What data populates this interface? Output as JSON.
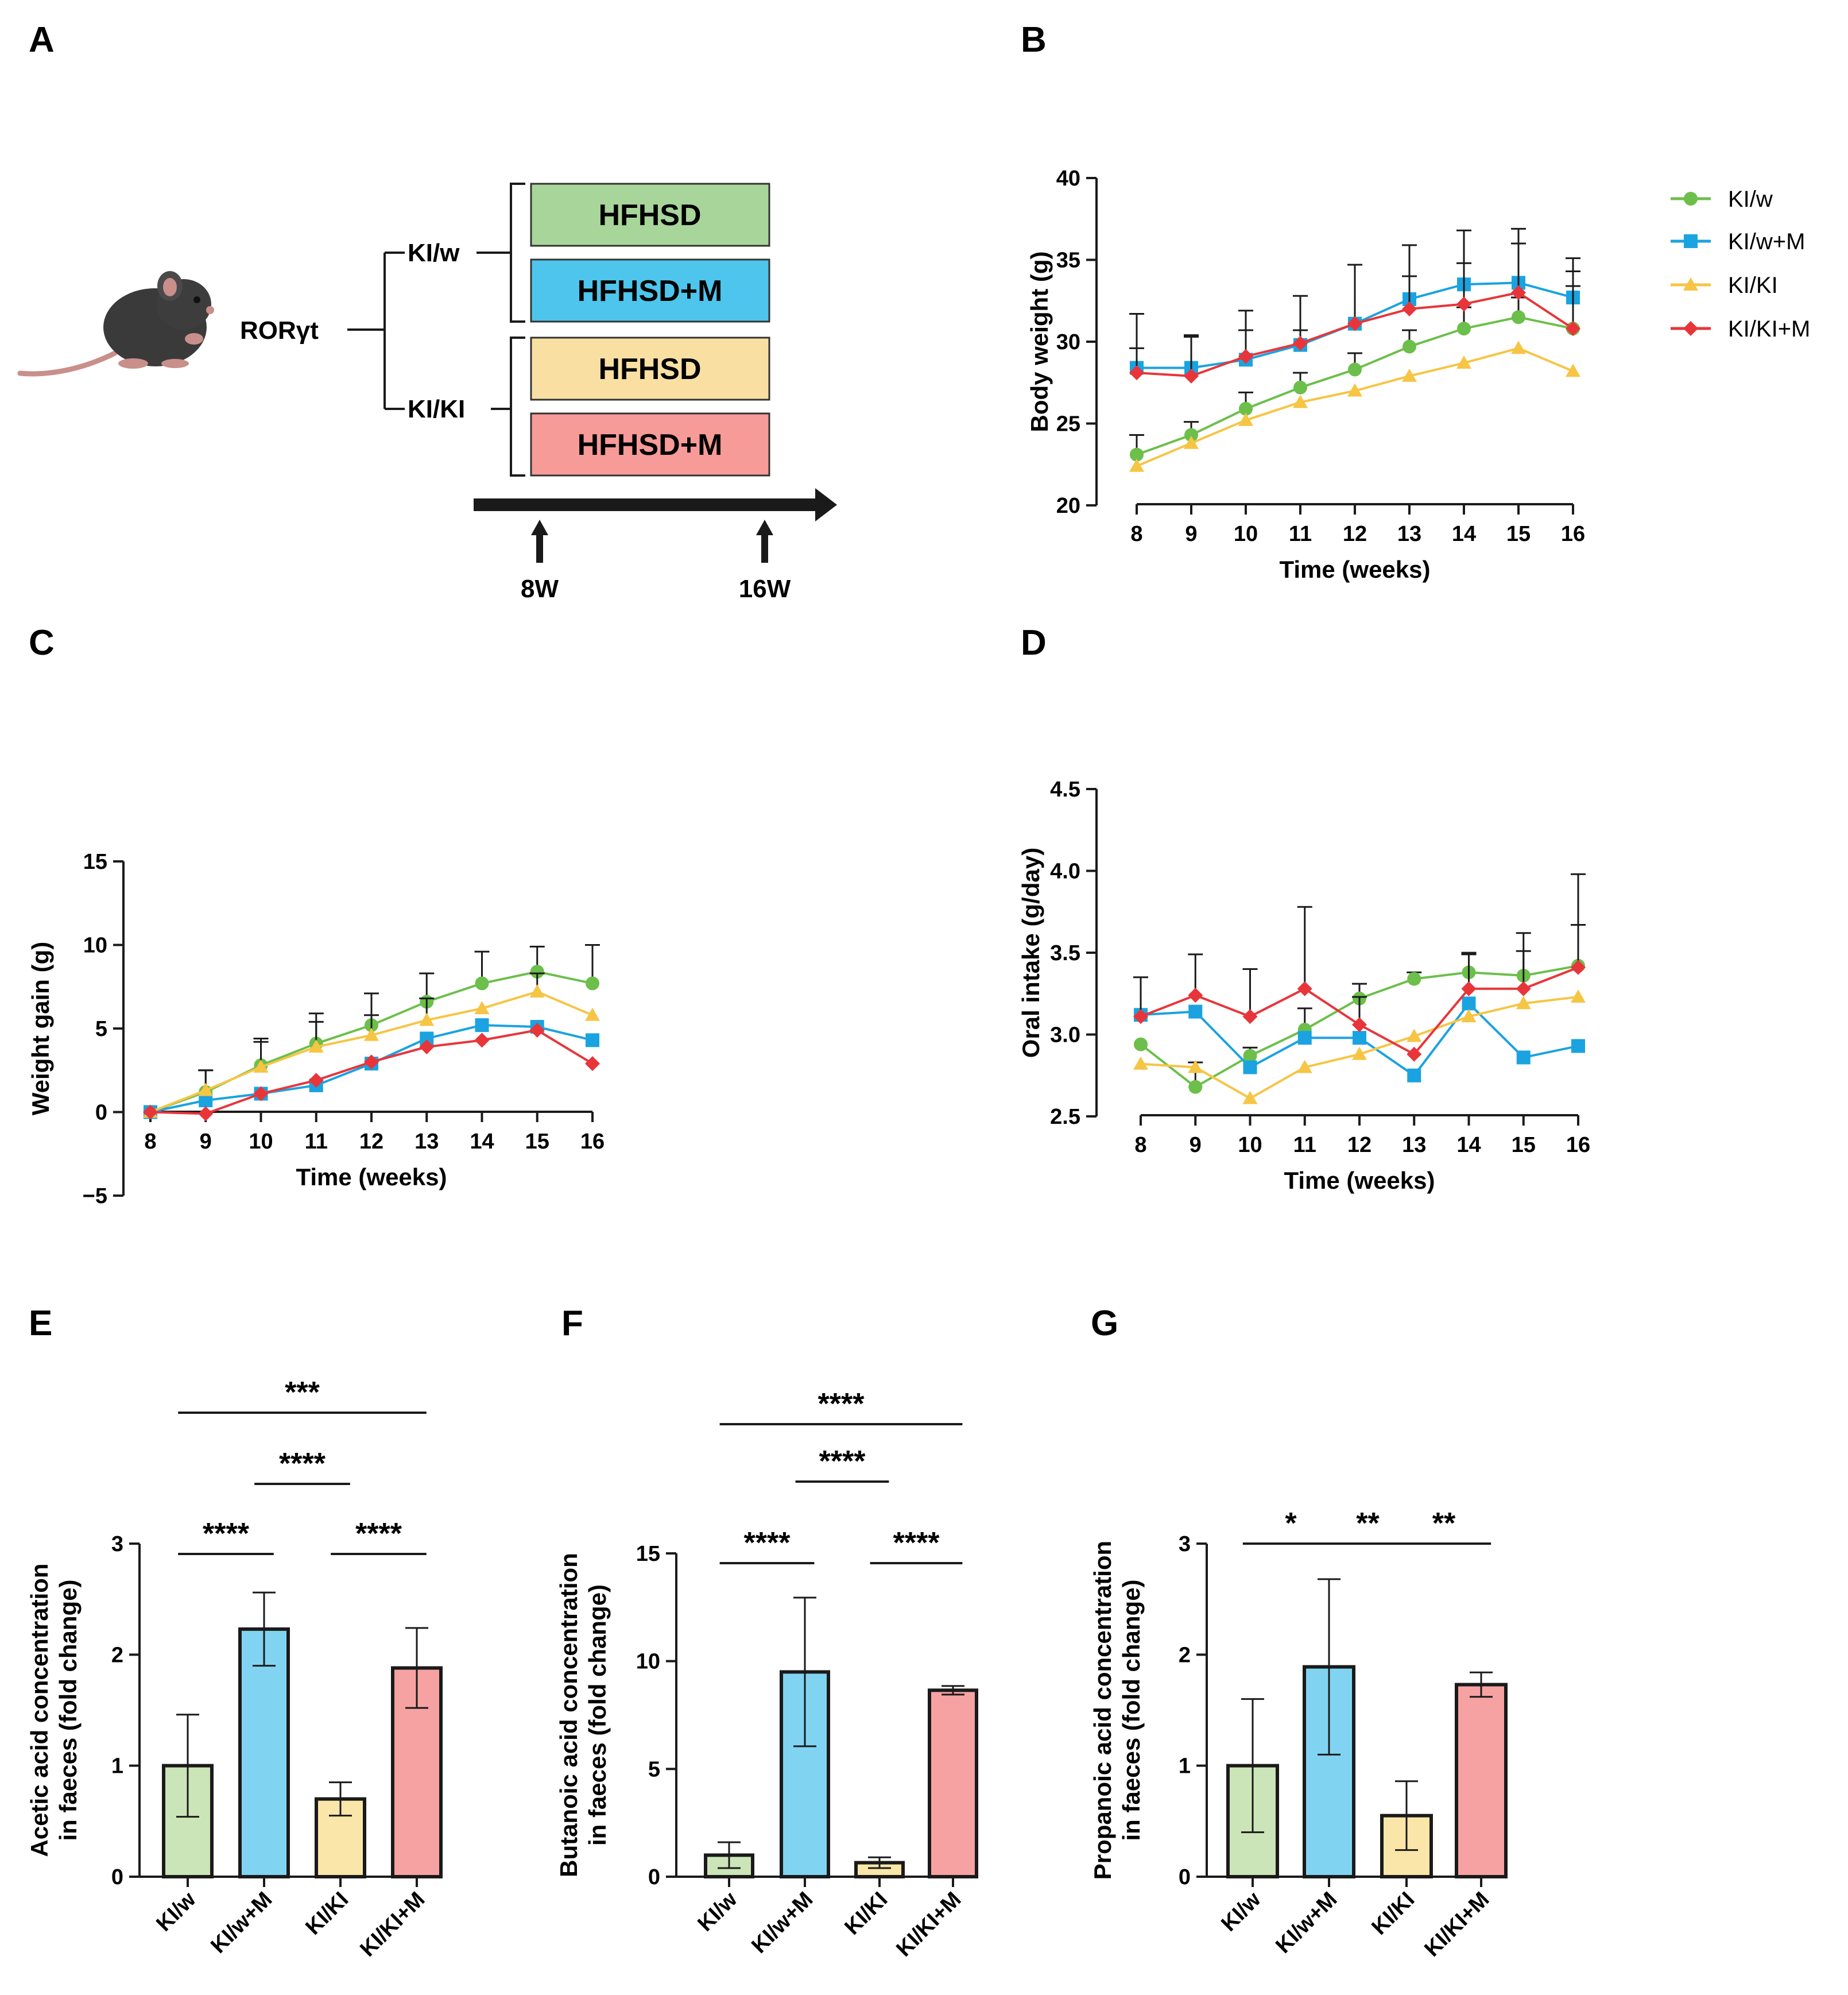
{
  "panel_labels": [
    "A",
    "B",
    "C",
    "D",
    "E",
    "F",
    "G"
  ],
  "colors": {
    "klw": "#6cbf4a",
    "klwm": "#1aa3e0",
    "klkl": "#f6c544",
    "klklm": "#e8353a",
    "bar_klw": "#cce5b8",
    "bar_klwm": "#80d4f2",
    "bar_klkl": "#fae6a8",
    "bar_klklm": "#f7a2a2",
    "box_green": "#a8d59a",
    "box_blue": "#4dc5ec",
    "box_yellow": "#f9e0a2",
    "box_red": "#f69b97"
  },
  "schematic": {
    "gene": "RORγt",
    "branches": [
      "KI/w",
      "KI/KI"
    ],
    "groups": [
      "HFHSD",
      "HFHSD+M",
      "HFHSD",
      "HFHSD+M"
    ],
    "timepoints": [
      "8W",
      "16W"
    ]
  },
  "legend": [
    "KI/w",
    "KI/w+M",
    "KI/KI",
    "KI/KI+M"
  ],
  "chart_data": [
    {
      "panel": "B",
      "type": "line",
      "xlabel": "Time (weeks)",
      "ylabel": "Body weight (g)",
      "x": [
        8,
        9,
        10,
        11,
        12,
        13,
        14,
        15,
        16
      ],
      "xlim": [
        8,
        16
      ],
      "ylim": [
        20,
        40
      ],
      "yticks": [
        20,
        25,
        30,
        35,
        40
      ],
      "series": [
        {
          "name": "KI/w",
          "values": [
            23.1,
            24.3,
            25.9,
            27.2,
            28.3,
            29.7,
            30.8,
            31.5,
            30.8
          ],
          "errors": [
            1.2,
            0.8,
            1.0,
            0.9,
            1.0,
            1.0,
            1.3,
            1.2,
            2.6
          ]
        },
        {
          "name": "KI/w+M",
          "values": [
            28.4,
            28.4,
            28.9,
            29.8,
            31.1,
            32.6,
            33.5,
            33.6,
            32.7
          ],
          "errors": [
            3.3,
            2.0,
            3.0,
            3.0,
            3.6,
            3.3,
            3.3,
            3.3,
            2.4
          ]
        },
        {
          "name": "KI/KI",
          "values": [
            22.4,
            23.8,
            25.2,
            26.3,
            27.0,
            27.9,
            28.7,
            29.6,
            28.2
          ],
          "errors": [
            0,
            0,
            0,
            0,
            0,
            0,
            0,
            0,
            0
          ]
        },
        {
          "name": "KI/KI+M",
          "values": [
            28.1,
            27.9,
            29.1,
            29.9,
            31.1,
            32.0,
            32.3,
            33.0,
            30.8
          ],
          "errors": [
            1.5,
            2.4,
            1.6,
            0.8,
            0,
            2.0,
            2.5,
            3.0,
            3.5
          ]
        }
      ]
    },
    {
      "panel": "C",
      "type": "line",
      "xlabel": "Time (weeks)",
      "ylabel": "Weight gain (g)",
      "x": [
        8,
        9,
        10,
        11,
        12,
        13,
        14,
        15,
        16
      ],
      "xlim": [
        8,
        16
      ],
      "ylim": [
        -5,
        15
      ],
      "yticks": [
        -5,
        0,
        5,
        10,
        15
      ],
      "ytick_labels": [
        "−5",
        "0",
        "5",
        "10",
        "15"
      ],
      "series": [
        {
          "name": "KI/w",
          "values": [
            0.0,
            1.2,
            2.8,
            4.1,
            5.2,
            6.6,
            7.7,
            8.4,
            7.7
          ],
          "errors": [
            0,
            1.3,
            1.6,
            1.8,
            1.9,
            1.7,
            1.9,
            1.5,
            2.3
          ]
        },
        {
          "name": "KI/w+M",
          "values": [
            0.0,
            0.7,
            1.1,
            1.6,
            2.9,
            4.4,
            5.2,
            5.1,
            4.3
          ],
          "errors": [
            0,
            0,
            0,
            0,
            0,
            0,
            0,
            0,
            0
          ]
        },
        {
          "name": "KI/KI",
          "values": [
            0.0,
            1.3,
            2.7,
            3.9,
            4.6,
            5.5,
            6.2,
            7.2,
            5.8
          ],
          "errors": [
            0,
            1.2,
            1.5,
            1.5,
            1.2,
            1.3,
            0,
            1.1,
            0
          ]
        },
        {
          "name": "KI/KI+M",
          "values": [
            0.0,
            -0.1,
            1.1,
            1.9,
            3.0,
            3.9,
            4.3,
            4.9,
            2.9
          ],
          "errors": [
            0,
            0,
            0,
            0,
            0,
            0,
            0,
            0,
            0
          ]
        }
      ]
    },
    {
      "panel": "D",
      "type": "line",
      "xlabel": "Time (weeks)",
      "ylabel": "Oral intake (g/day)",
      "x": [
        8,
        9,
        10,
        11,
        12,
        13,
        14,
        15,
        16
      ],
      "xlim": [
        8,
        16
      ],
      "ylim": [
        2.5,
        4.5
      ],
      "yticks": [
        2.5,
        3.0,
        3.5,
        4.0,
        4.5
      ],
      "ytick_labels": [
        "2.5",
        "3.0",
        "3.5",
        "4.0",
        "4.5"
      ],
      "series": [
        {
          "name": "KI/w",
          "values": [
            2.94,
            2.68,
            2.87,
            3.03,
            3.22,
            3.34,
            3.38,
            3.36,
            3.42
          ],
          "errors": [
            0,
            0.15,
            0.05,
            0.13,
            0.09,
            0.04,
            0.11,
            0.26,
            0.56
          ]
        },
        {
          "name": "KI/w+M",
          "values": [
            3.12,
            3.14,
            2.8,
            2.98,
            2.98,
            2.75,
            3.19,
            2.86,
            2.93
          ],
          "errors": [
            0,
            0,
            0,
            0,
            0,
            0,
            0,
            0,
            0
          ]
        },
        {
          "name": "KI/KI",
          "values": [
            2.82,
            2.8,
            2.61,
            2.8,
            2.88,
            2.99,
            3.11,
            3.19,
            3.23
          ],
          "errors": [
            0,
            0,
            0,
            0,
            0,
            0,
            0,
            0,
            0
          ]
        },
        {
          "name": "KI/KI+M",
          "values": [
            3.11,
            3.24,
            3.11,
            3.28,
            3.06,
            2.88,
            3.28,
            3.28,
            3.41
          ],
          "errors": [
            0.24,
            0.25,
            0.29,
            0.5,
            0.17,
            0,
            0.22,
            0.23,
            0.26
          ]
        }
      ]
    },
    {
      "panel": "E",
      "type": "bar",
      "ylabel_line1": "Acetic acid concentration",
      "ylabel_line2": "in faeces (fold change)",
      "categories": [
        "KI/w",
        "KI/w+M",
        "KI/KI",
        "KI/KI+M"
      ],
      "values": [
        1.0,
        2.23,
        0.7,
        1.88
      ],
      "errors": [
        0.46,
        0.33,
        0.15,
        0.36
      ],
      "ylim": [
        0,
        3
      ],
      "yticks": [
        0,
        1,
        2,
        3
      ],
      "significance": [
        {
          "from": 0,
          "to": 1,
          "label": "****"
        },
        {
          "from": 2,
          "to": 3,
          "label": "****"
        },
        {
          "from": 1,
          "to": 2,
          "label": "****"
        },
        {
          "from": 0,
          "to": 3,
          "label": "***"
        }
      ]
    },
    {
      "panel": "F",
      "type": "bar",
      "ylabel_line1": "Butanoic acid concentration",
      "ylabel_line2": "in faeces (fold change)",
      "categories": [
        "KI/w",
        "KI/w+M",
        "KI/KI",
        "KI/KI+M"
      ],
      "values": [
        1.0,
        9.5,
        0.65,
        8.65
      ],
      "errors": [
        0.6,
        3.45,
        0.25,
        0.2
      ],
      "ylim": [
        0,
        15
      ],
      "yticks": [
        0,
        5,
        10,
        15
      ],
      "significance": [
        {
          "from": 0,
          "to": 1,
          "label": "****"
        },
        {
          "from": 2,
          "to": 3,
          "label": "****"
        },
        {
          "from": 1,
          "to": 2,
          "label": "****"
        },
        {
          "from": 0,
          "to": 3,
          "label": "****"
        }
      ]
    },
    {
      "panel": "G",
      "type": "bar",
      "ylabel_line1": "Propanoic acid concentration",
      "ylabel_line2": "in faeces (fold change)",
      "categories": [
        "KI/w",
        "KI/w+M",
        "KI/KI",
        "KI/KI+M"
      ],
      "values": [
        1.0,
        1.89,
        0.55,
        1.73
      ],
      "errors": [
        0.6,
        0.79,
        0.31,
        0.11
      ],
      "ylim": [
        0,
        3
      ],
      "yticks": [
        0,
        1,
        2,
        3
      ],
      "significance": [
        {
          "from": 0,
          "to": 1,
          "label": "*"
        },
        {
          "from": 1,
          "to": 2,
          "label": "**"
        },
        {
          "from": 2,
          "to": 3,
          "label": "**"
        }
      ]
    }
  ]
}
